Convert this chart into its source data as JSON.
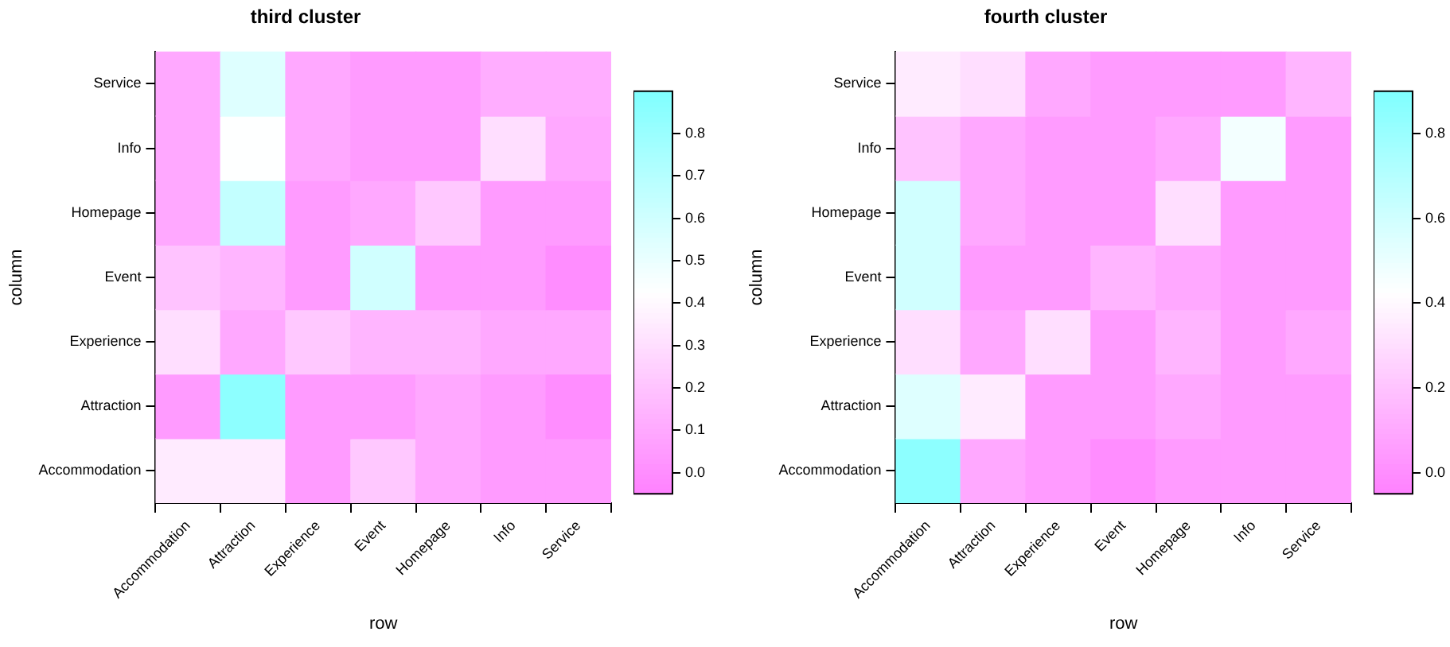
{
  "chart_data": [
    {
      "type": "heatmap",
      "title": "third cluster",
      "xlabel": "row",
      "ylabel": "column",
      "categories": [
        "Accommodation",
        "Attraction",
        "Experience",
        "Event",
        "Homepage",
        "Info",
        "Service"
      ],
      "y_categories": [
        "Service",
        "Info",
        "Homepage",
        "Event",
        "Experience",
        "Attraction",
        "Accommodation"
      ],
      "cells": [
        [
          0.1,
          0.55,
          0.1,
          0.05,
          0.05,
          0.12,
          0.12
        ],
        [
          0.1,
          0.43,
          0.1,
          0.05,
          0.05,
          0.3,
          0.1
        ],
        [
          0.1,
          0.65,
          0.05,
          0.1,
          0.22,
          0.05,
          0.05
        ],
        [
          0.2,
          0.15,
          0.05,
          0.6,
          0.05,
          0.05,
          0.0
        ],
        [
          0.3,
          0.1,
          0.22,
          0.15,
          0.15,
          0.1,
          0.1
        ],
        [
          0.05,
          0.85,
          0.05,
          0.05,
          0.1,
          0.05,
          0.0
        ],
        [
          0.35,
          0.35,
          0.05,
          0.22,
          0.1,
          0.05,
          0.05
        ]
      ],
      "colors": [
        "#ff80ff",
        "#ffffff",
        "#80ffff"
      ],
      "clim": [
        -0.05,
        0.9
      ],
      "cticks": [
        {
          "value": 0,
          "label": "0.0"
        },
        0.1,
        0.2,
        0.3,
        0.4,
        0.5,
        0.6,
        0.7,
        0.8
      ]
    },
    {
      "type": "heatmap",
      "title": "fourth cluster",
      "xlabel": "row",
      "ylabel": "column",
      "categories": [
        "Accommodation",
        "Attraction",
        "Experience",
        "Event",
        "Homepage",
        "Info",
        "Service"
      ],
      "y_categories": [
        "Service",
        "Info",
        "Homepage",
        "Event",
        "Experience",
        "Attraction",
        "Accommodation"
      ],
      "cells": [
        [
          0.35,
          0.3,
          0.1,
          0.05,
          0.05,
          0.05,
          0.15
        ],
        [
          0.2,
          0.1,
          0.05,
          0.05,
          0.1,
          0.47,
          0.05
        ],
        [
          0.6,
          0.1,
          0.05,
          0.05,
          0.3,
          0.05,
          0.05
        ],
        [
          0.6,
          0.05,
          0.05,
          0.15,
          0.1,
          0.05,
          0.05
        ],
        [
          0.3,
          0.1,
          0.3,
          0.05,
          0.15,
          0.05,
          0.1
        ],
        [
          0.55,
          0.35,
          0.05,
          0.05,
          0.1,
          0.05,
          0.05
        ],
        [
          0.85,
          0.1,
          0.05,
          0.0,
          0.05,
          0.05,
          0.05
        ]
      ],
      "colors": [
        "#ff80ff",
        "#ffffff",
        "#80ffff"
      ],
      "clim": [
        -0.05,
        0.9
      ],
      "cticks": [
        {
          "value": 0,
          "label": "0.0"
        },
        0.2,
        0.4,
        0.6,
        0.8
      ]
    }
  ]
}
